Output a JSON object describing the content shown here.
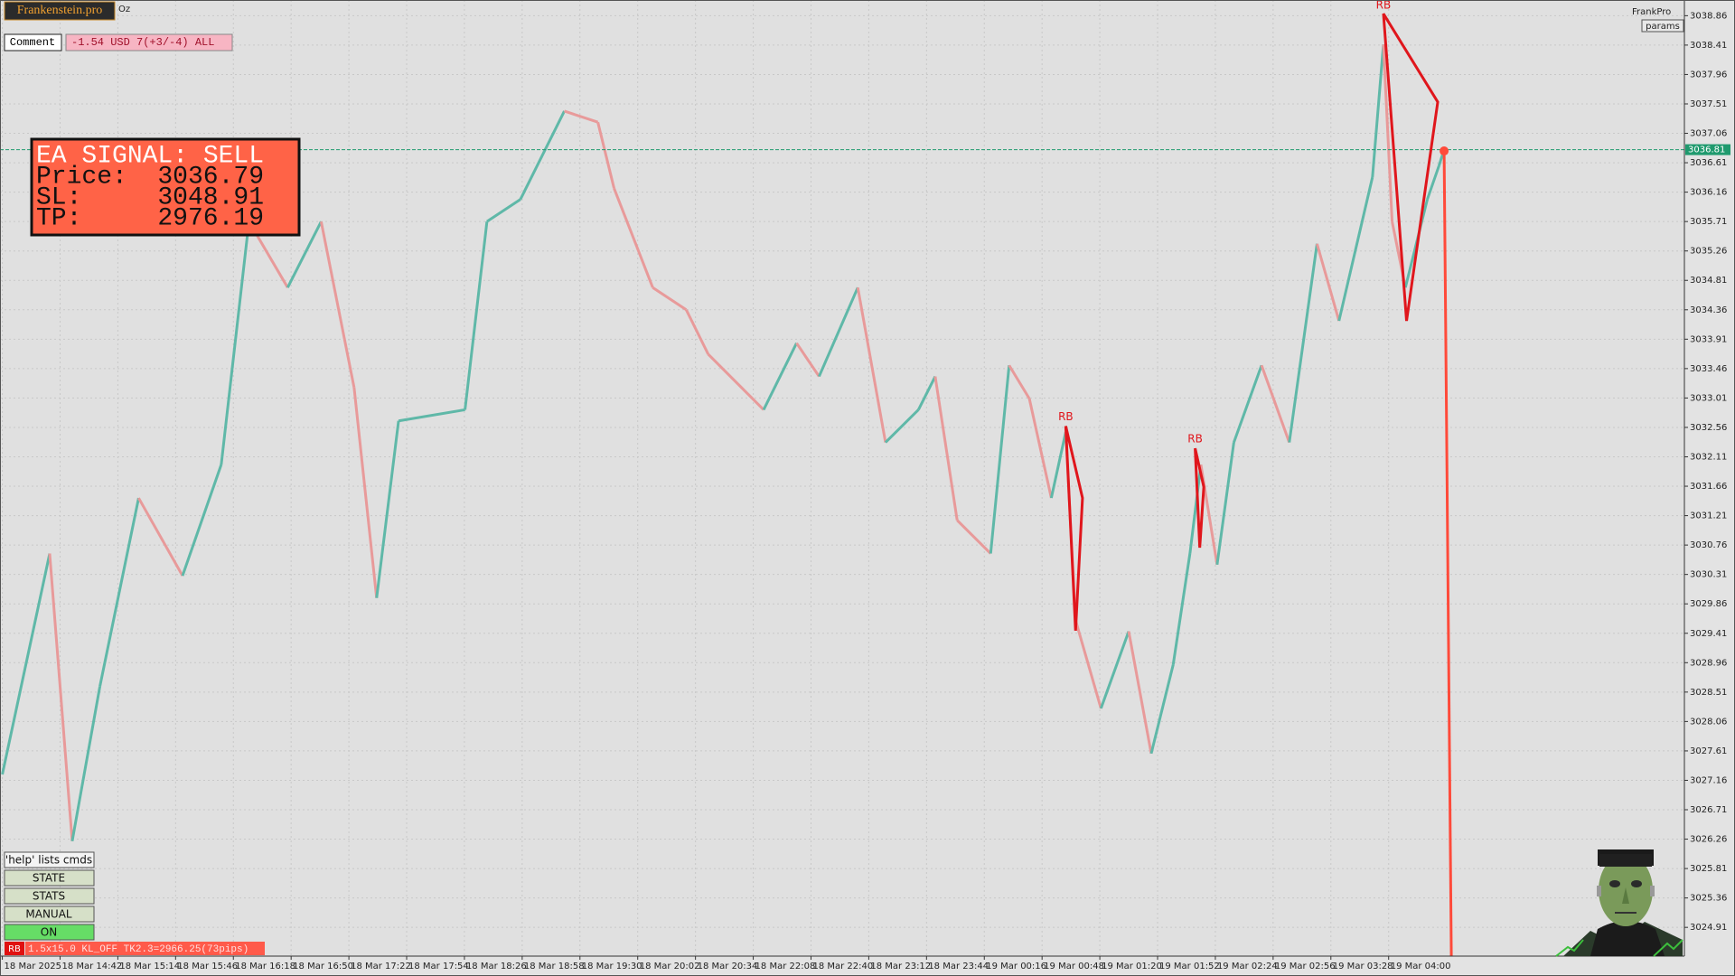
{
  "header": {
    "brand": "Frankenstein.pro",
    "symbol": "Oz",
    "comment_label": "Comment",
    "comment_value": "-1.54 USD 7(+3/-4) ALL",
    "account": "FrankPro",
    "params": "params"
  },
  "signal_box": {
    "title": "EA SIGNAL: SELL",
    "price_label": "Price:",
    "price": 3036.79,
    "sl_label": "SL:",
    "sl": 3048.91,
    "tp_label": "TP:",
    "tp": 2976.19
  },
  "buttons": [
    "'help' lists cmds",
    "STATE",
    "STATS",
    "MANUAL",
    "ON"
  ],
  "status": {
    "tag": "RB",
    "text": "1.5x15.0 KL_OFF TK2.3=2966.25(73pips)"
  },
  "chart_data": {
    "type": "line",
    "x": [
      0,
      0.82,
      1.21,
      1.69,
      2.36,
      3.12,
      3.79,
      4.27,
      4.94,
      5.52,
      6.09,
      6.48,
      6.86,
      8.01,
      8.39,
      8.97,
      9.73,
      10.31,
      10.59,
      11.26,
      11.84,
      12.22,
      13.18,
      13.75,
      14.14,
      14.81,
      15.29,
      15.86,
      16.15,
      16.53,
      17.11,
      17.43,
      17.78,
      18.16,
      18.41,
      18.58,
      19.02,
      19.5,
      19.89,
      20.27,
      20.56,
      20.75,
      21.03,
      21.32,
      21.8,
      22.28,
      22.76,
      23.14,
      23.72,
      23.91,
      24.06,
      24.29,
      24.67,
      24.87,
      24.96
    ],
    "values": [
      3027.25,
      3030.63,
      3026.23,
      3028.6,
      3031.48,
      3030.29,
      3031.99,
      3035.71,
      3034.7,
      3035.71,
      3033.17,
      3029.95,
      3032.66,
      3032.83,
      3035.71,
      3036.05,
      3037.4,
      3037.23,
      3036.22,
      3034.7,
      3034.36,
      3033.68,
      3032.83,
      3033.85,
      3033.34,
      3034.7,
      3032.33,
      3032.83,
      3033.34,
      3031.14,
      3030.63,
      3033.51,
      3033.0,
      3031.48,
      3032.49,
      3029.61,
      3028.26,
      3029.44,
      3027.57,
      3028.93,
      3030.63,
      3031.99,
      3030.46,
      3032.33,
      3033.51,
      3032.33,
      3035.37,
      3034.19,
      3036.39,
      3038.42,
      3035.71,
      3034.7,
      3036.05,
      3036.56,
      3036.81
    ],
    "up_color": "#5fb8a8",
    "down_color": "#e89a9a",
    "xlim": [
      -0.04,
      29.12
    ],
    "xticks": [
      {
        "value": 0,
        "label": "18 Mar 2025"
      },
      {
        "value": 1,
        "label": "18 Mar 14:42"
      },
      {
        "value": 2,
        "label": "18 Mar 15:14"
      },
      {
        "value": 3,
        "label": "18 Mar 15:46"
      },
      {
        "value": 4,
        "label": "18 Mar 16:18"
      },
      {
        "value": 5,
        "label": "18 Mar 16:50"
      },
      {
        "value": 6,
        "label": "18 Mar 17:22"
      },
      {
        "value": 7,
        "label": "18 Mar 17:54"
      },
      {
        "value": 8,
        "label": "18 Mar 18:26"
      },
      {
        "value": 9,
        "label": "18 Mar 18:58"
      },
      {
        "value": 10,
        "label": "18 Mar 19:30"
      },
      {
        "value": 11,
        "label": "18 Mar 20:02"
      },
      {
        "value": 12,
        "label": "18 Mar 20:34"
      },
      {
        "value": 13,
        "label": "18 Mar 22:08"
      },
      {
        "value": 14,
        "label": "18 Mar 22:40"
      },
      {
        "value": 15,
        "label": "18 Mar 23:12"
      },
      {
        "value": 16,
        "label": "18 Mar 23:44"
      },
      {
        "value": 17,
        "label": "19 Mar 00:16"
      },
      {
        "value": 18,
        "label": "19 Mar 00:48"
      },
      {
        "value": 19,
        "label": "19 Mar 01:20"
      },
      {
        "value": 20,
        "label": "19 Mar 01:52"
      },
      {
        "value": 21,
        "label": "19 Mar 02:24"
      },
      {
        "value": 22,
        "label": "19 Mar 02:56"
      },
      {
        "value": 23,
        "label": "19 Mar 03:28"
      },
      {
        "value": 24,
        "label": "19 Mar 04:00"
      }
    ],
    "ylim": [
      3024.47,
      3039.1
    ],
    "yticks": [
      3038.86,
      3038.41,
      3037.96,
      3037.51,
      3037.06,
      3036.61,
      3036.16,
      3035.71,
      3035.26,
      3034.81,
      3034.36,
      3033.91,
      3033.46,
      3033.01,
      3032.56,
      3032.11,
      3031.66,
      3031.21,
      3030.76,
      3030.31,
      3029.86,
      3029.41,
      3028.96,
      3028.51,
      3028.06,
      3027.61,
      3027.16,
      3026.71,
      3026.26,
      3025.81,
      3025.36,
      3024.91
    ],
    "grid": true,
    "current_price": 3036.81,
    "current_price_color": "#1f9a6e",
    "pattern_color": "#e0161c",
    "patterns": [
      {
        "label": "RB",
        "x": [
          18.41,
          18.7,
          18.58
        ],
        "values": [
          3032.58,
          3031.48,
          3029.45
        ]
      },
      {
        "label": "RB",
        "x": [
          20.65,
          20.8,
          20.73
        ],
        "values": [
          3032.24,
          3031.65,
          3030.72
        ]
      },
      {
        "label": "RB",
        "x": [
          23.91,
          24.85,
          24.31
        ],
        "values": [
          3038.89,
          3037.54,
          3034.19
        ]
      }
    ]
  }
}
